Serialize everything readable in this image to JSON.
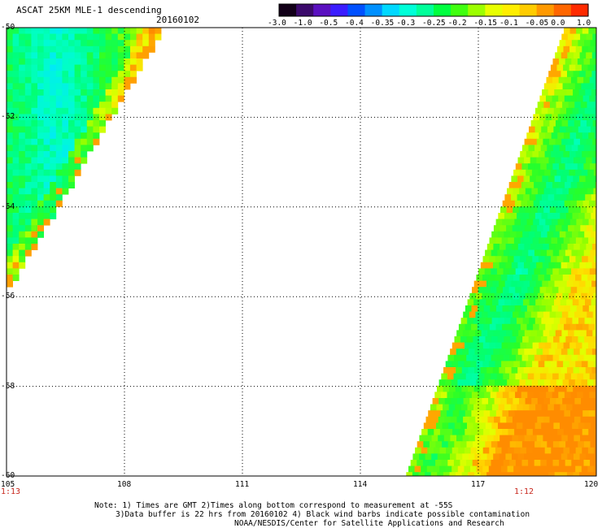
{
  "header": {
    "title": "ASCAT 25KM MLE-1 descending",
    "date": "20160102"
  },
  "colorbar": {
    "labels": [
      "-3.0",
      "-1.0",
      "-0.5",
      "-0.4",
      "-0.35",
      "-0.3",
      "-0.25",
      "-0.2",
      "-0.15",
      "-0.1",
      "-0.05",
      "0.0",
      "1.0"
    ],
    "colors": [
      "#120018",
      "#3b0a6b",
      "#5a10c0",
      "#3a1cff",
      "#0050ff",
      "#0090ff",
      "#00d8ff",
      "#00ffd8",
      "#00ff9a",
      "#00ff40",
      "#40ff10",
      "#9cff00",
      "#e8ff00",
      "#ffee00",
      "#ffcc00",
      "#ff9900",
      "#ff6600",
      "#ff2a00"
    ]
  },
  "map": {
    "lat_labels": [
      "-50",
      "-52",
      "-54",
      "-56",
      "-58",
      "-60"
    ],
    "lon_labels": [
      "105",
      "108",
      "111",
      "114",
      "117",
      "120"
    ],
    "time_left": "1:13",
    "time_right": "1:12"
  },
  "notes": {
    "line1": "Note: 1) Times are GMT 2)Times along bottom correspond to measurement at -55S",
    "line2": "3)Data buffer is 22 hrs from 20160102 4) Black wind barbs indicate possible contamination",
    "line3": "NOAA/NESDIS/Center for Satellite Applications and Research"
  }
}
